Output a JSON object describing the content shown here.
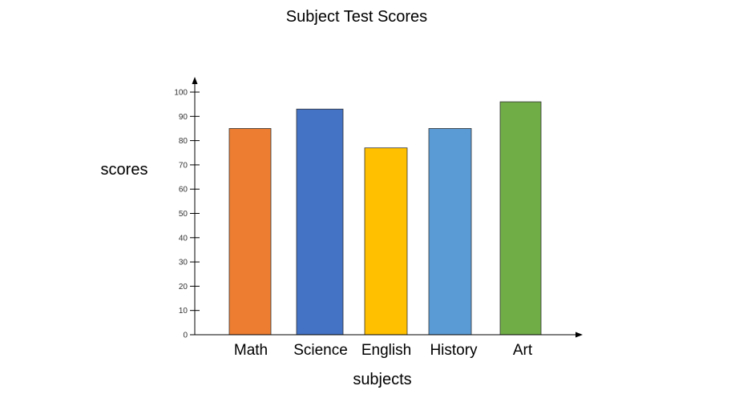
{
  "chart_data": {
    "type": "bar",
    "title": "Subject Test Scores",
    "xlabel": "subjects",
    "ylabel": "scores",
    "categories": [
      "Math",
      "Science",
      "English",
      "History",
      "Art"
    ],
    "values": [
      85,
      93,
      77,
      85,
      96
    ],
    "colors": [
      "#ED7D31",
      "#4472C4",
      "#FFC000",
      "#5B9BD5",
      "#70AD47"
    ],
    "ylim": [
      0,
      100
    ],
    "yticks": [
      "0",
      "10",
      "20",
      "30",
      "40",
      "50",
      "60",
      "70",
      "80",
      "90",
      "100"
    ],
    "grid": false,
    "legend": "none"
  }
}
